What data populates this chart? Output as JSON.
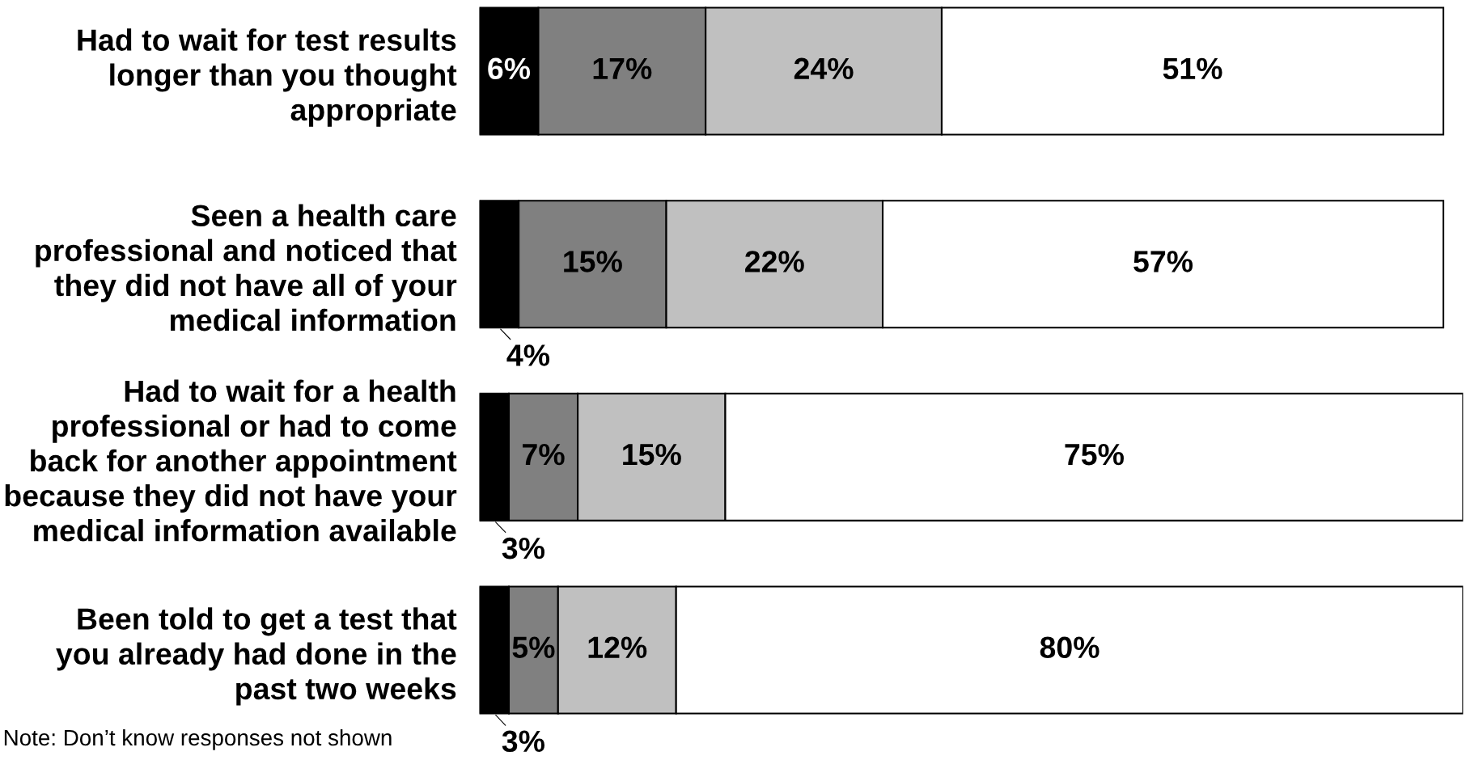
{
  "chart_data": {
    "type": "bar",
    "orientation": "horizontal",
    "stacked": true,
    "tick_labels": "y",
    "categories": [
      "Had to wait for test results\nlonger than you thought\nappropriate",
      "Seen a health care\nprofessional and noticed that\nthey did not have all of your\nmedical information",
      "Had to wait for a health\nprofessional or had to come\nback for another appointment\nbecause they did not have your\nmedical information available",
      "Been told to get a test that\nyou already had done in the\npast two weeks"
    ],
    "series": [
      {
        "color": "#000000",
        "values": [
          6,
          4,
          3,
          3
        ],
        "value_labels": [
          "6%",
          "4%",
          "3%",
          "3%"
        ]
      },
      {
        "color": "#808080",
        "values": [
          17,
          15,
          7,
          5
        ],
        "value_labels": [
          "17%",
          "15%",
          "7%",
          "5%"
        ]
      },
      {
        "color": "#c0c0c0",
        "values": [
          24,
          22,
          15,
          12
        ],
        "value_labels": [
          "24%",
          "22%",
          "15%",
          "12%"
        ]
      },
      {
        "color": "#ffffff",
        "values": [
          51,
          57,
          75,
          80
        ],
        "value_labels": [
          "51%",
          "57%",
          "75%",
          "80%"
        ]
      }
    ],
    "annotations": [
      "Note: Don’t know responses not shown"
    ]
  }
}
